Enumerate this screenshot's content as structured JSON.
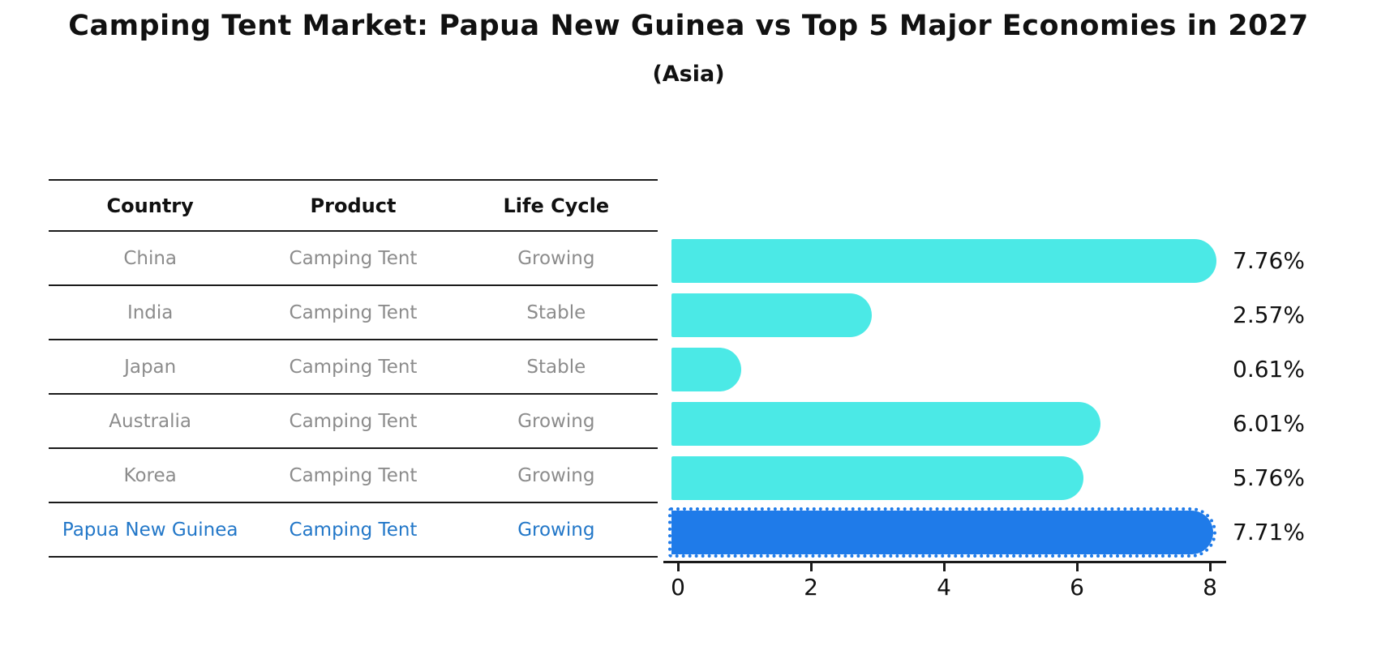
{
  "title": "Camping Tent Market: Papua New Guinea vs Top 5 Major Economies in 2027",
  "subtitle": "(Asia)",
  "table": {
    "headers": [
      "Country",
      "Product",
      "Life Cycle"
    ],
    "rows": [
      {
        "country": "China",
        "product": "Camping Tent",
        "life_cycle": "Growing",
        "highlight": false
      },
      {
        "country": "India",
        "product": "Camping Tent",
        "life_cycle": "Stable",
        "highlight": false
      },
      {
        "country": "Japan",
        "product": "Camping Tent",
        "life_cycle": "Stable",
        "highlight": false
      },
      {
        "country": "Australia",
        "product": "Camping Tent",
        "life_cycle": "Growing",
        "highlight": false
      },
      {
        "country": "Korea",
        "product": "Camping Tent",
        "life_cycle": "Growing",
        "highlight": false
      },
      {
        "country": "Papua New Guinea",
        "product": "Camping Tent",
        "life_cycle": "Growing",
        "highlight": true
      }
    ]
  },
  "chart_data": {
    "type": "bar",
    "orientation": "horizontal",
    "categories": [
      "China",
      "India",
      "Japan",
      "Australia",
      "Korea",
      "Papua New Guinea"
    ],
    "values": [
      7.76,
      2.57,
      0.61,
      6.01,
      5.76,
      7.71
    ],
    "value_labels": [
      "7.76%",
      "2.57%",
      "0.61%",
      "6.01%",
      "5.76%",
      "7.71%"
    ],
    "xticks": [
      0,
      2,
      4,
      6,
      8
    ],
    "xlim": [
      0,
      8.2
    ],
    "xlabel": "",
    "ylabel": "",
    "grid": "off",
    "legend": "none",
    "bar_color": "#4be9e6",
    "highlight_bar_color": "#1f7be9",
    "highlight_border_color": "#1f7be9",
    "highlight_text_color": "#2277c8",
    "highlight_index": 5
  }
}
